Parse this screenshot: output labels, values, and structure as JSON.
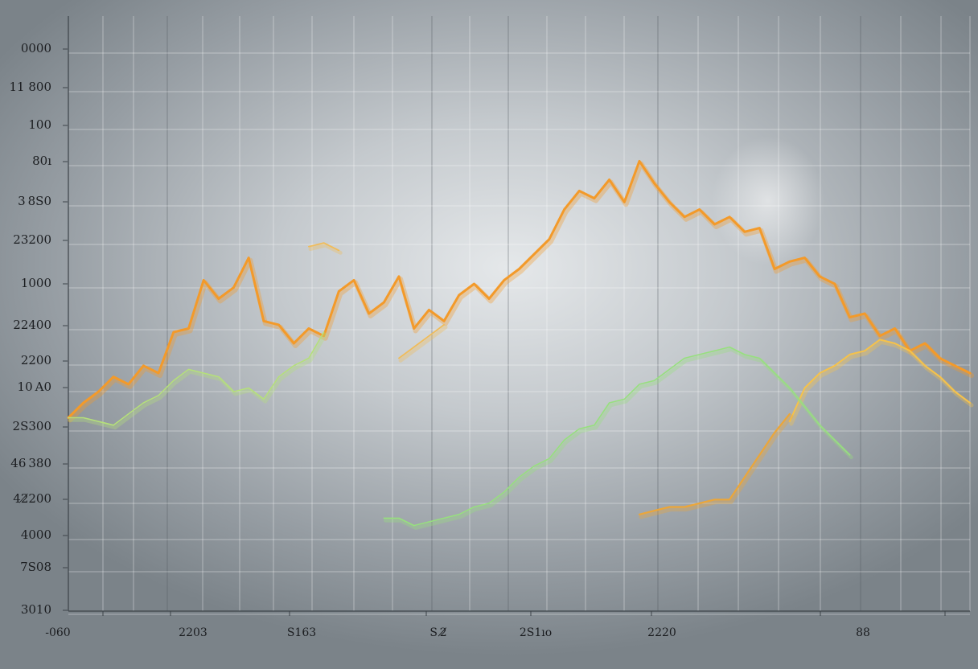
{
  "chart_data": {
    "type": "line",
    "title": "",
    "xlabel": "",
    "ylabel": "",
    "grid": true,
    "legend": "none",
    "y_tick_labels": [
      "0000",
      "11 800",
      "100",
      "80ı",
      "3 8S0",
      "23200",
      "1000",
      "22400",
      "2200",
      "10 A0",
      "2S300",
      "46 380",
      "42̸200",
      "4000",
      "7S08",
      "3010"
    ],
    "x_tick_labels": [
      "-060",
      "2203",
      "S163",
      "S 2̸̸",
      "2S1ıo",
      "2220",
      "88"
    ],
    "x": [
      0,
      1,
      2,
      3,
      4,
      5,
      6,
      7,
      8,
      9,
      10,
      11,
      12,
      13,
      14,
      15,
      16,
      17,
      18,
      19,
      20,
      21,
      22,
      23,
      24,
      25,
      26,
      27,
      28,
      29,
      30,
      31,
      32,
      33,
      34,
      35,
      36,
      37,
      38,
      39,
      40,
      41,
      42,
      43,
      44,
      45,
      46,
      47,
      48,
      49,
      50,
      51,
      52,
      53,
      54,
      55,
      56,
      57,
      58,
      59,
      60
    ],
    "xlim": [
      0,
      60
    ],
    "ylim": [
      0,
      16
    ],
    "series": [
      {
        "color": "#f39a2a",
        "width": 3,
        "values": [
          5.2,
          5.6,
          5.9,
          6.3,
          6.1,
          6.6,
          6.4,
          7.5,
          7.6,
          8.9,
          8.4,
          8.7,
          9.5,
          7.8,
          7.7,
          7.2,
          7.6,
          7.4,
          8.6,
          8.9,
          8.0,
          8.3,
          9.0,
          7.6,
          8.1,
          7.8,
          8.5,
          8.8,
          8.4,
          8.9,
          9.2,
          9.6,
          10.0,
          10.8,
          11.3,
          11.1,
          11.6,
          11.0,
          12.1,
          11.5,
          11.0,
          10.6,
          10.8,
          10.4,
          10.6,
          10.2,
          10.3,
          9.2,
          9.4,
          9.5,
          9.0,
          8.8,
          7.9,
          8.0,
          7.4,
          7.6,
          7.0,
          7.2,
          6.8,
          6.6,
          6.4
        ]
      },
      {
        "color": "#f6c24a",
        "width": 2,
        "values": [
          null,
          null,
          null,
          null,
          null,
          null,
          null,
          null,
          null,
          null,
          null,
          null,
          null,
          null,
          null,
          null,
          null,
          null,
          null,
          null,
          null,
          null,
          null,
          null,
          null,
          null,
          null,
          null,
          null,
          null,
          null,
          null,
          null,
          null,
          null,
          null,
          null,
          null,
          null,
          null,
          null,
          null,
          null,
          null,
          null,
          null,
          null,
          null,
          5.1,
          6.0,
          6.4,
          6.6,
          6.9,
          7.0,
          7.3,
          7.2,
          7.0,
          6.6,
          6.3,
          5.9,
          5.6
        ]
      },
      {
        "color": "#b5e07a",
        "width": 1.6,
        "values": [
          5.2,
          5.2,
          5.1,
          5.0,
          5.3,
          5.6,
          5.8,
          6.2,
          6.5,
          6.4,
          6.3,
          5.9,
          6.0,
          5.7,
          6.3,
          6.6,
          6.8,
          7.5,
          null,
          null,
          null,
          null,
          null,
          null,
          null,
          null,
          null,
          null,
          null,
          null,
          null,
          null,
          null,
          null,
          null,
          null,
          null,
          null,
          null,
          null,
          null,
          null,
          null,
          null,
          null,
          null,
          null,
          null,
          null,
          null,
          null,
          null,
          null,
          null,
          null,
          null,
          null,
          null,
          null,
          null,
          null
        ]
      },
      {
        "color": "#97e07e",
        "width": 1.6,
        "values": [
          null,
          null,
          null,
          null,
          null,
          null,
          null,
          null,
          null,
          null,
          null,
          null,
          null,
          null,
          null,
          null,
          null,
          null,
          null,
          null,
          null,
          2.5,
          2.5,
          2.3,
          2.4,
          2.5,
          2.6,
          2.8,
          2.9,
          3.2,
          3.6,
          3.9,
          4.1,
          4.6,
          4.9,
          5.0,
          5.6,
          5.7,
          6.1,
          6.2,
          6.5,
          6.8,
          6.9,
          7.0,
          7.1,
          6.9,
          6.8,
          6.4,
          6.0,
          5.5,
          5.0,
          4.6,
          4.2,
          null,
          null,
          null,
          null,
          null,
          null,
          null,
          null
        ]
      },
      {
        "color": "#eba63a",
        "width": 2.2,
        "values": [
          null,
          null,
          null,
          null,
          null,
          null,
          null,
          null,
          null,
          null,
          null,
          null,
          null,
          null,
          null,
          null,
          null,
          null,
          null,
          null,
          null,
          null,
          null,
          null,
          null,
          null,
          null,
          null,
          null,
          null,
          null,
          null,
          null,
          null,
          null,
          null,
          null,
          null,
          2.6,
          2.7,
          2.8,
          2.8,
          2.9,
          3.0,
          3.0,
          3.6,
          4.2,
          4.8,
          5.3,
          null,
          null,
          null,
          null,
          null,
          null,
          null,
          null,
          null,
          null,
          null,
          null
        ]
      },
      {
        "color": "#f0bc5a",
        "width": 1.8,
        "values": [
          null,
          null,
          null,
          null,
          null,
          null,
          null,
          null,
          null,
          null,
          null,
          null,
          null,
          null,
          null,
          null,
          9.8,
          9.9,
          9.7,
          null,
          null,
          null,
          6.8,
          7.1,
          7.4,
          7.7,
          null,
          null,
          null,
          null,
          null,
          null,
          null,
          null,
          null,
          null,
          null,
          null,
          null,
          null,
          null,
          null,
          null,
          null,
          null,
          null,
          null,
          null,
          null,
          null,
          null,
          null,
          null,
          null,
          null,
          null,
          null,
          null,
          null,
          null,
          null
        ]
      }
    ]
  }
}
